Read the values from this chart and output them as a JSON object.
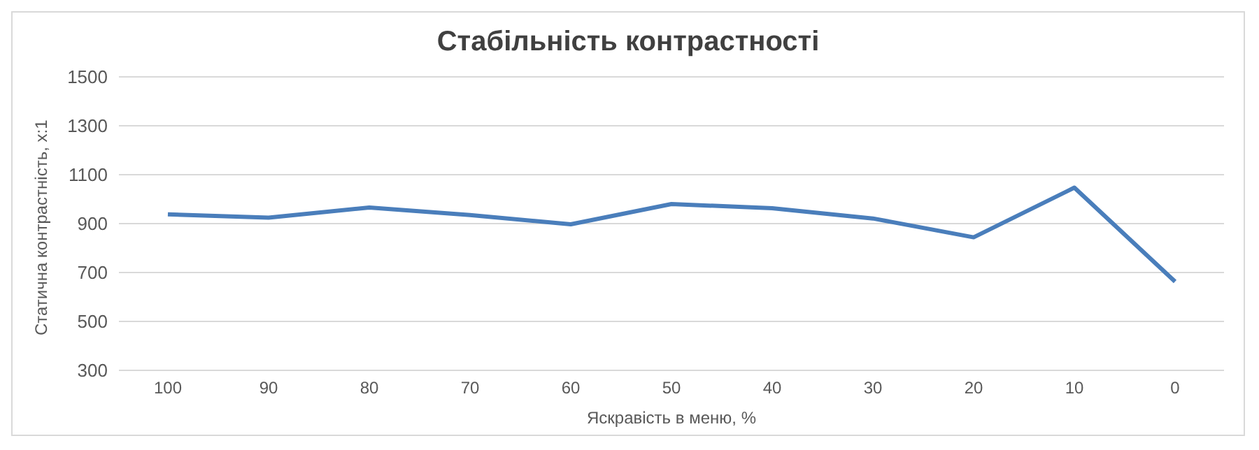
{
  "chart_data": {
    "type": "line",
    "title": "Стабільність контрастності",
    "xlabel": "Яскравість в меню, %",
    "ylabel": "Статична контрастність, х:1",
    "categories": [
      "100",
      "90",
      "80",
      "70",
      "60",
      "50",
      "40",
      "30",
      "20",
      "10",
      "0"
    ],
    "series": [
      {
        "color": "#4a7ebb",
        "values": [
          938,
          924,
          966,
          935,
          897,
          980,
          963,
          921,
          844,
          1047,
          663
        ]
      }
    ],
    "ylim": [
      300,
      1500
    ],
    "yticks": [
      300,
      500,
      700,
      900,
      1100,
      1300,
      1500
    ],
    "grid": "y",
    "legend": false,
    "marker": "none",
    "line_style": "solid"
  }
}
